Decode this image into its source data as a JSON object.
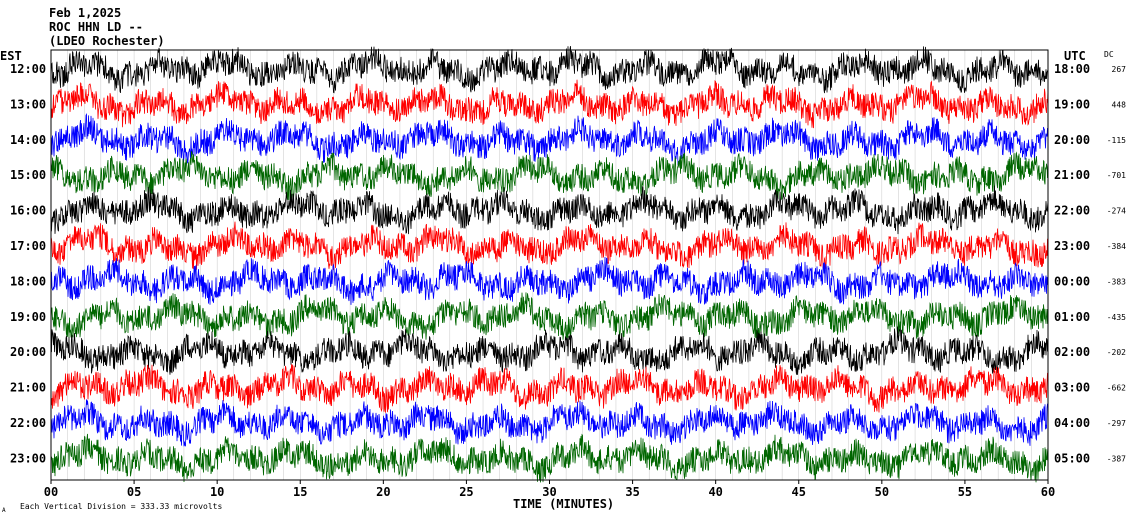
{
  "header": {
    "date": "Feb 1,2025",
    "station": "ROC HHN LD --",
    "location": "(LDEO Rochester)"
  },
  "left_axis_title": "EST",
  "right_axis_title": "UTC",
  "dc_title": "DC",
  "x_axis_title": "TIME (MINUTES)",
  "footer": "Each Vertical Division =  333.33 microvolts",
  "corner_mark": "A",
  "colors": {
    "trace_cycle": [
      "#000000",
      "#ff0000",
      "#0000ff",
      "#006600"
    ],
    "gridline": "#c8c8c8",
    "frame": "#000000"
  },
  "chart_data": {
    "type": "line",
    "title": "",
    "xlabel": "TIME (MINUTES)",
    "ylabel": "",
    "xlim": [
      0,
      60
    ],
    "x_ticks": [
      "00",
      "05",
      "10",
      "15",
      "20",
      "25",
      "30",
      "35",
      "40",
      "45",
      "50",
      "55",
      "60"
    ],
    "grid": true,
    "rows": [
      {
        "est": "12:00",
        "utc": "18:00",
        "dc": "267"
      },
      {
        "est": "13:00",
        "utc": "19:00",
        "dc": "448"
      },
      {
        "est": "14:00",
        "utc": "20:00",
        "dc": "-115"
      },
      {
        "est": "15:00",
        "utc": "21:00",
        "dc": "-701"
      },
      {
        "est": "16:00",
        "utc": "22:00",
        "dc": "-274"
      },
      {
        "est": "17:00",
        "utc": "23:00",
        "dc": "-384"
      },
      {
        "est": "18:00",
        "utc": "00:00",
        "dc": "-383"
      },
      {
        "est": "19:00",
        "utc": "01:00",
        "dc": "-435"
      },
      {
        "est": "20:00",
        "utc": "02:00",
        "dc": "-202"
      },
      {
        "est": "21:00",
        "utc": "03:00",
        "dc": "-662"
      },
      {
        "est": "22:00",
        "utc": "04:00",
        "dc": "-297"
      },
      {
        "est": "23:00",
        "utc": "05:00",
        "dc": "-387"
      }
    ]
  }
}
